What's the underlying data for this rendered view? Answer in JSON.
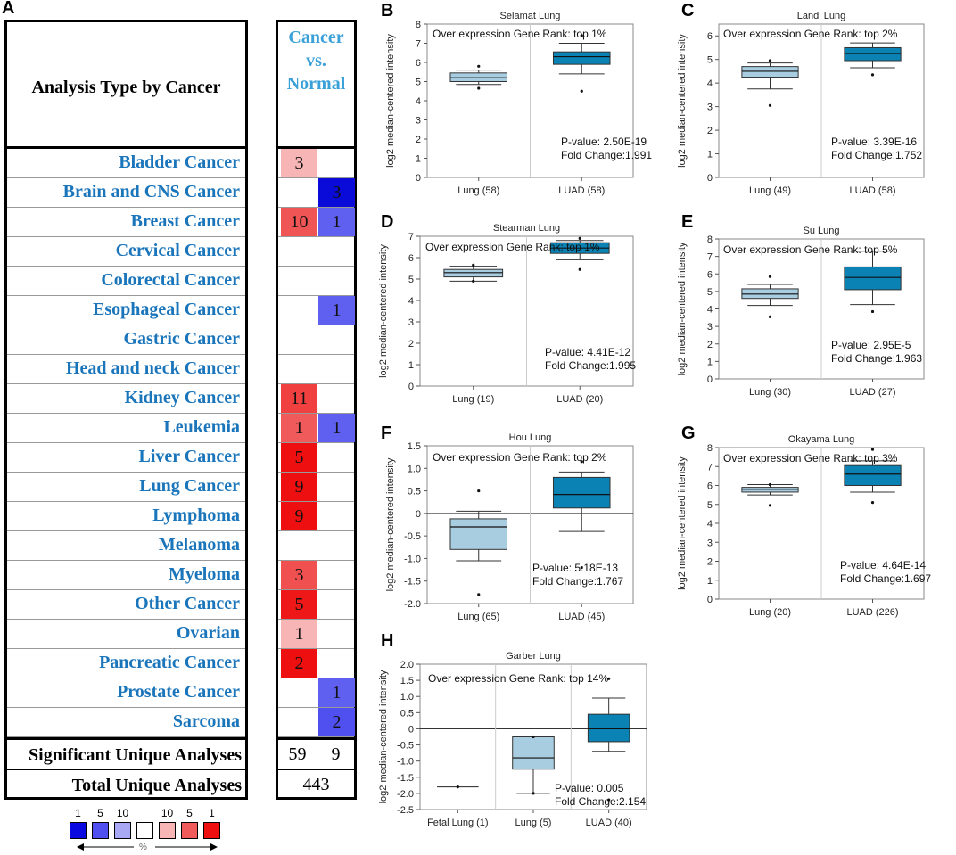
{
  "panel_a": {
    "letter": "A",
    "header_title": "Analysis Type by Cancer",
    "header_col": [
      "Cancer",
      "vs.",
      "Normal"
    ],
    "rows": [
      {
        "name": "Bladder Cancer",
        "left": "3",
        "left_color": "#f8b5b5",
        "right": "",
        "right_color": ""
      },
      {
        "name": "Brain and CNS Cancer",
        "left": "",
        "left_color": "",
        "right": "3",
        "right_color": "#0b0bd9"
      },
      {
        "name": "Breast Cancer",
        "left": "10",
        "left_color": "#f05555",
        "right": "1",
        "right_color": "#5f5ff0"
      },
      {
        "name": "Cervical Cancer",
        "left": "",
        "left_color": "",
        "right": "",
        "right_color": ""
      },
      {
        "name": "Colorectal Cancer",
        "left": "",
        "left_color": "",
        "right": "",
        "right_color": ""
      },
      {
        "name": "Esophageal Cancer",
        "left": "",
        "left_color": "",
        "right": "1",
        "right_color": "#5f5ff0"
      },
      {
        "name": "Gastric Cancer",
        "left": "",
        "left_color": "",
        "right": "",
        "right_color": ""
      },
      {
        "name": "Head and neck Cancer",
        "left": "",
        "left_color": "",
        "right": "",
        "right_color": ""
      },
      {
        "name": "Kidney Cancer",
        "left": "11",
        "left_color": "#f04040",
        "right": "",
        "right_color": ""
      },
      {
        "name": "Leukemia",
        "left": "1",
        "left_color": "#f05a5a",
        "right": "1",
        "right_color": "#5f5ff0"
      },
      {
        "name": "Liver Cancer",
        "left": "5",
        "left_color": "#ee1010",
        "right": "",
        "right_color": ""
      },
      {
        "name": "Lung Cancer",
        "left": "9",
        "left_color": "#ee1010",
        "right": "",
        "right_color": ""
      },
      {
        "name": "Lymphoma",
        "left": "9",
        "left_color": "#ee1010",
        "right": "",
        "right_color": ""
      },
      {
        "name": "Melanoma",
        "left": "",
        "left_color": "",
        "right": "",
        "right_color": ""
      },
      {
        "name": "Myeloma",
        "left": "3",
        "left_color": "#f05050",
        "right": "",
        "right_color": ""
      },
      {
        "name": "Other Cancer",
        "left": "5",
        "left_color": "#ee1818",
        "right": "",
        "right_color": ""
      },
      {
        "name": "Ovarian",
        "left": "1",
        "left_color": "#f8b5b5",
        "right": "",
        "right_color": ""
      },
      {
        "name": "Pancreatic Cancer",
        "left": "2",
        "left_color": "#ee1010",
        "right": "",
        "right_color": ""
      },
      {
        "name": "Prostate Cancer",
        "left": "",
        "left_color": "",
        "right": "1",
        "right_color": "#5f5ff0"
      },
      {
        "name": "Sarcoma",
        "left": "",
        "left_color": "",
        "right": "2",
        "right_color": "#5050f0"
      }
    ],
    "sig_label": "Significant Unique Analyses",
    "sig_left": "59",
    "sig_right": "9",
    "total_label": "Total Unique Analyses",
    "total_value": "443",
    "legend": {
      "numbers": [
        "1",
        "5",
        "10",
        "",
        "10",
        "5",
        "1"
      ],
      "colors": [
        "#0a0ae0",
        "#5050f0",
        "#a8a8f5",
        "#ffffff",
        "#f8b5b5",
        "#f05a5a",
        "#ee1010"
      ],
      "unit": "%"
    }
  },
  "chart_data": [
    {
      "type": "box",
      "panel": "B",
      "title": "Selamat Lung",
      "annotation": "Over expression Gene Rank: top 1%",
      "ylabel": "log2 median-centered intensity",
      "ylim": [
        0,
        8
      ],
      "yticks": [
        0,
        1,
        2,
        3,
        4,
        5,
        6,
        7,
        8
      ],
      "pvalue": "P-value: 2.50E-19",
      "fold": "Fold Change:1.991",
      "groups": [
        {
          "label": "Lung (58)",
          "min": 4.85,
          "q1": 5.0,
          "median": 5.2,
          "q3": 5.45,
          "max": 5.6,
          "outliers": [
            4.65,
            5.8
          ],
          "style": "light"
        },
        {
          "label": "LUAD (58)",
          "min": 5.4,
          "q1": 5.9,
          "median": 6.3,
          "q3": 6.55,
          "max": 7.0,
          "outliers": [
            4.5,
            7.4
          ],
          "style": "dark"
        }
      ]
    },
    {
      "type": "box",
      "panel": "C",
      "title": "Landi Lung",
      "annotation": "Over expression Gene Rank: top 2%",
      "ylabel": "log2 median-centered intensity",
      "ylim": [
        0,
        6.5
      ],
      "yticks": [
        0,
        1,
        2,
        3,
        4,
        5,
        6
      ],
      "pvalue": "P-value: 3.39E-16",
      "fold": "Fold Change:1.752",
      "groups": [
        {
          "label": "Lung (49)",
          "min": 3.75,
          "q1": 4.25,
          "median": 4.5,
          "q3": 4.7,
          "max": 4.85,
          "outliers": [
            3.05,
            4.95
          ],
          "style": "light"
        },
        {
          "label": "LUAD (58)",
          "min": 4.65,
          "q1": 4.95,
          "median": 5.25,
          "q3": 5.5,
          "max": 5.7,
          "outliers": [
            4.35
          ],
          "style": "dark"
        }
      ]
    },
    {
      "type": "box",
      "panel": "D",
      "title": "Stearman Lung",
      "annotation": "Over expression Gene Rank: top 1%",
      "ylabel": "log2 median-centered intensity",
      "ylim": [
        0,
        7
      ],
      "yticks": [
        0,
        1,
        2,
        3,
        4,
        5,
        6,
        7
      ],
      "pvalue": "P-value: 4.41E-12",
      "fold": "Fold Change:1.995",
      "groups": [
        {
          "label": "Lung (19)",
          "min": 4.9,
          "q1": 5.1,
          "median": 5.3,
          "q3": 5.45,
          "max": 5.6,
          "outliers": [
            4.9,
            5.65
          ],
          "style": "light"
        },
        {
          "label": "LUAD (20)",
          "min": 5.9,
          "q1": 6.2,
          "median": 6.45,
          "q3": 6.7,
          "max": 6.8,
          "outliers": [
            5.45,
            6.9
          ],
          "style": "dark"
        }
      ]
    },
    {
      "type": "box",
      "panel": "E",
      "title": "Su Lung",
      "annotation": "Over expression Gene Rank: top 5%",
      "ylabel": "log2 median-centered intensity",
      "ylim": [
        0,
        8
      ],
      "yticks": [
        0,
        1,
        2,
        3,
        4,
        5,
        6,
        7,
        8
      ],
      "pvalue": "P-value: 2.95E-5",
      "fold": "Fold Change:1.963",
      "groups": [
        {
          "label": "Lung (30)",
          "min": 4.2,
          "q1": 4.6,
          "median": 4.85,
          "q3": 5.15,
          "max": 5.4,
          "outliers": [
            3.55,
            5.85
          ],
          "style": "light"
        },
        {
          "label": "LUAD (27)",
          "min": 4.25,
          "q1": 5.1,
          "median": 5.8,
          "q3": 6.4,
          "max": 7.3,
          "outliers": [
            3.85
          ],
          "style": "dark"
        }
      ]
    },
    {
      "type": "box",
      "panel": "F",
      "title": "Hou Lung",
      "annotation": "Over expression Gene Rank: top 2%",
      "ylabel": "log2 median-centered intensity",
      "ylim": [
        -2.0,
        1.5
      ],
      "yticks": [
        -2.0,
        -1.5,
        -1.0,
        -0.5,
        0,
        0.5,
        1.0,
        1.5
      ],
      "pvalue": "P-value: 5.18E-13",
      "fold": "Fold Change:1.767",
      "groups": [
        {
          "label": "Lung (65)",
          "min": -1.05,
          "q1": -0.8,
          "median": -0.3,
          "q3": -0.12,
          "max": 0.05,
          "outliers": [
            -1.8,
            0.5
          ],
          "style": "light"
        },
        {
          "label": "LUAD (45)",
          "min": -0.4,
          "q1": 0.12,
          "median": 0.42,
          "q3": 0.8,
          "max": 0.92,
          "outliers": [
            -1.2,
            1.15
          ],
          "style": "dark"
        }
      ]
    },
    {
      "type": "box",
      "panel": "G",
      "title": "Okayama Lung",
      "annotation": "Over expression Gene Rank: top 3%",
      "ylabel": "log2 median-centered intensity",
      "ylim": [
        0,
        8
      ],
      "yticks": [
        0,
        1,
        2,
        3,
        4,
        5,
        6,
        7,
        8
      ],
      "pvalue": "P-value: 4.64E-14",
      "fold": "Fold Change:1.697",
      "groups": [
        {
          "label": "Lung (20)",
          "min": 5.5,
          "q1": 5.65,
          "median": 5.8,
          "q3": 5.9,
          "max": 6.05,
          "outliers": [
            4.95,
            6.05
          ],
          "style": "light"
        },
        {
          "label": "LUAD (226)",
          "min": 5.65,
          "q1": 6.0,
          "median": 6.6,
          "q3": 7.05,
          "max": 7.3,
          "outliers": [
            5.1,
            7.9
          ],
          "style": "dark"
        }
      ]
    },
    {
      "type": "box",
      "panel": "H",
      "title": "Garber Lung",
      "annotation": "Over expression Gene Rank: top 14%",
      "ylabel": "log2 median-centered intensity",
      "ylim": [
        -2.5,
        2.0
      ],
      "yticks": [
        -2.5,
        -2.0,
        -1.5,
        -1.0,
        -0.5,
        0,
        0.5,
        1.0,
        1.5,
        2.0
      ],
      "pvalue": "P-value: 0.005",
      "fold": "Fold Change:2.154",
      "groups": [
        {
          "label": "Fetal Lung (1)",
          "min": -1.8,
          "q1": -1.8,
          "median": -1.8,
          "q3": -1.8,
          "max": -1.8,
          "outliers": [
            -1.8
          ],
          "style": "line"
        },
        {
          "label": "Lung (5)",
          "min": -2.0,
          "q1": -1.25,
          "median": -0.9,
          "q3": -0.25,
          "max": -0.25,
          "outliers": [
            -2.0,
            -0.25
          ],
          "style": "light"
        },
        {
          "label": "LUAD (40)",
          "min": -0.7,
          "q1": -0.4,
          "median": 0.0,
          "q3": 0.45,
          "max": 0.95,
          "outliers": [
            1.55,
            -2.2
          ],
          "style": "dark"
        }
      ]
    }
  ]
}
